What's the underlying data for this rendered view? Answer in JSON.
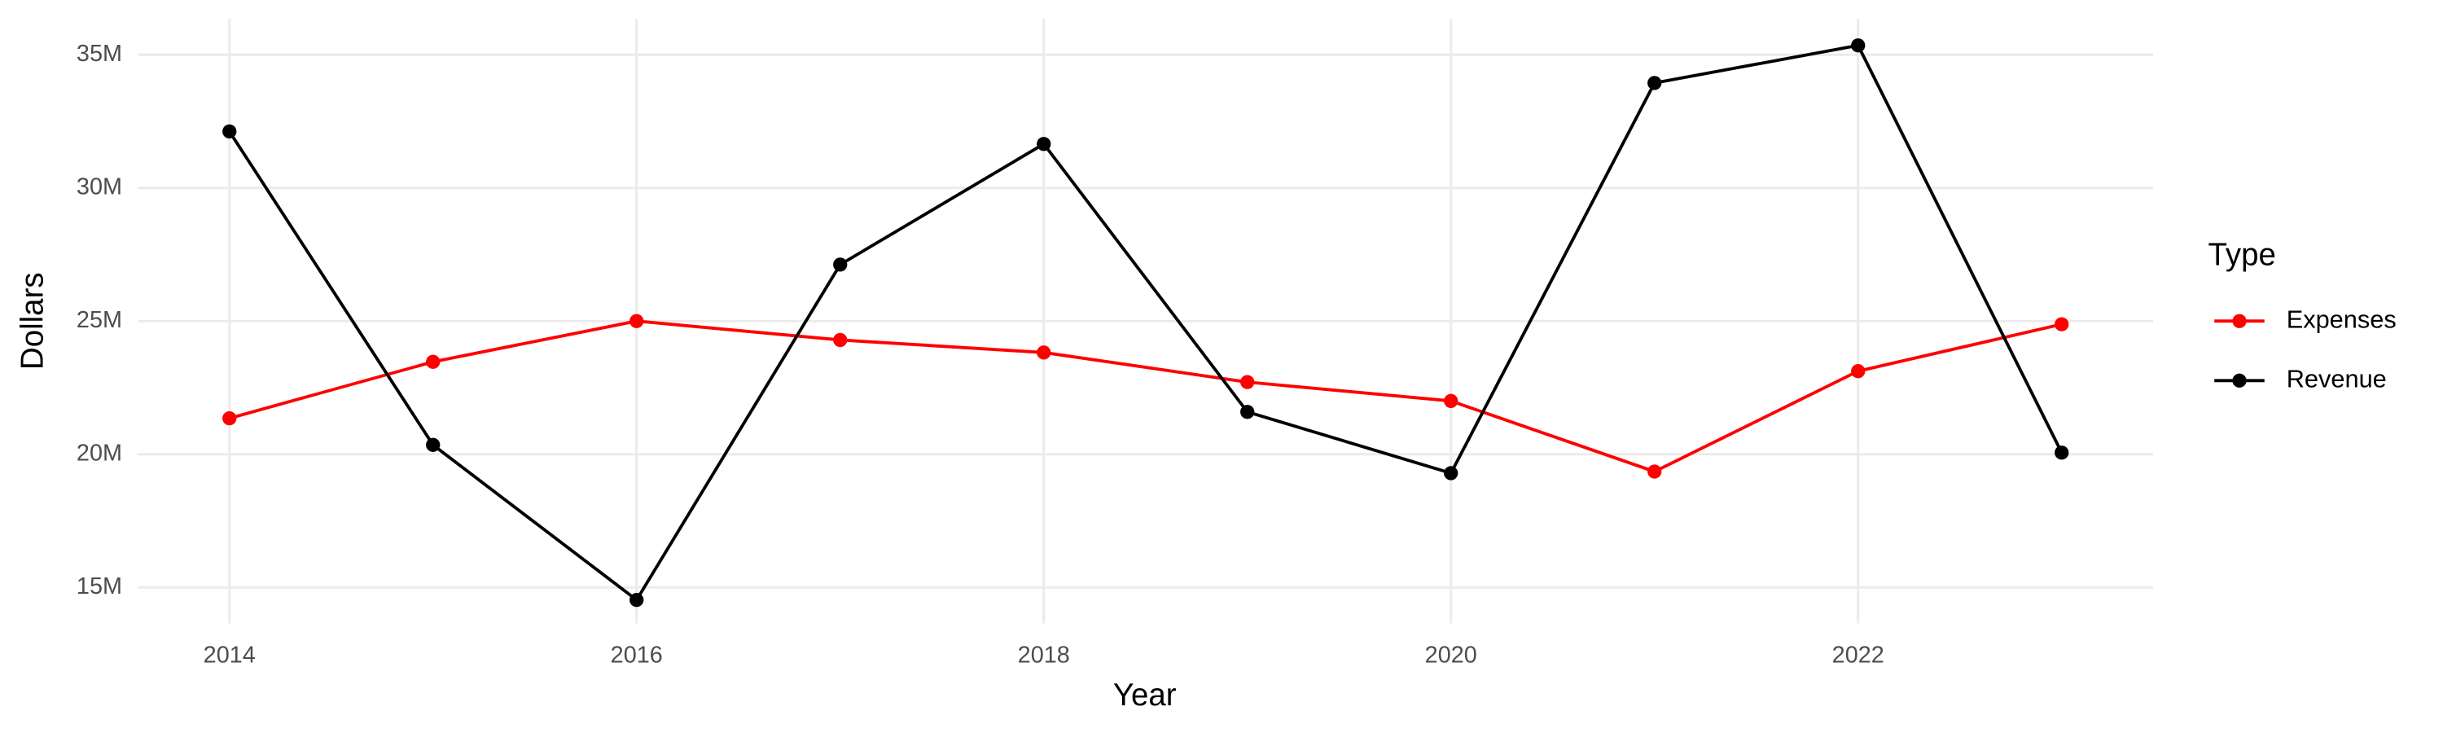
{
  "chart_data": {
    "type": "line",
    "x_label": "Year",
    "y_label": "Dollars",
    "legend_title": "Type",
    "legend_position": "right",
    "grid": true,
    "x": [
      2014,
      2015,
      2016,
      2017,
      2018,
      2019,
      2020,
      2021,
      2022,
      2023
    ],
    "series": [
      {
        "name": "Expenses",
        "color": "#ff0000",
        "values": [
          21350000,
          23470000,
          25000000,
          24290000,
          23820000,
          22710000,
          22000000,
          19350000,
          23120000,
          24880000
        ]
      },
      {
        "name": "Revenue",
        "color": "#000000",
        "values": [
          32120000,
          20350000,
          14530000,
          27120000,
          31650000,
          21590000,
          19290000,
          33940000,
          35350000,
          20060000
        ]
      }
    ],
    "xlim": [
      2013.55,
      2023.45
    ],
    "xticks": [
      2014,
      2016,
      2018,
      2020,
      2022
    ],
    "ylim": [
      13650000,
      36350000
    ],
    "yticks": [
      {
        "value": 15000000,
        "label": "15M"
      },
      {
        "value": 20000000,
        "label": "20M"
      },
      {
        "value": 25000000,
        "label": "25M"
      },
      {
        "value": 30000000,
        "label": "30M"
      },
      {
        "value": 35000000,
        "label": "35M"
      }
    ]
  }
}
